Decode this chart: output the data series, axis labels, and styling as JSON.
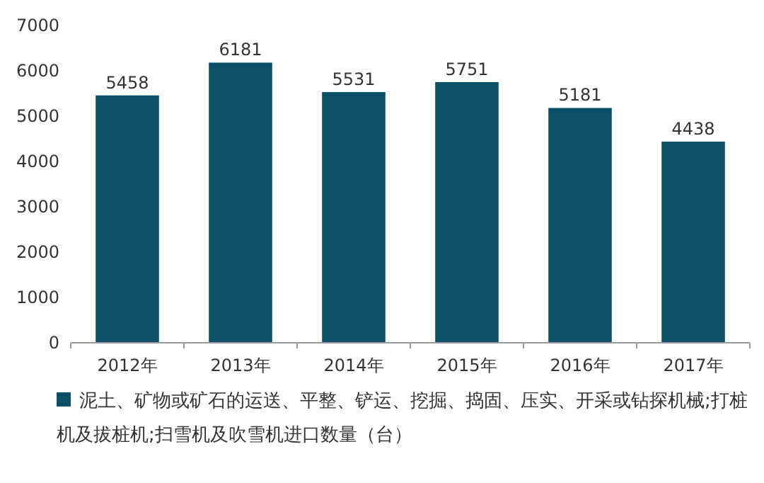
{
  "chart_data": {
    "type": "bar",
    "categories": [
      "2012年",
      "2013年",
      "2014年",
      "2015年",
      "2016年",
      "2017年"
    ],
    "series": [
      {
        "name": "泥土、矿物或矿石的运送、平整、铲运、挖掘、捣固、压实、开采或钻探机械;打桩机及拔桩机;扫雪机及吹雪机进口数量（台）",
        "color": "#0e5068",
        "values": [
          5458,
          6181,
          5531,
          5751,
          5181,
          4438
        ]
      }
    ],
    "ylim": [
      0,
      7000
    ],
    "yticks": [
      0,
      1000,
      2000,
      3000,
      4000,
      5000,
      6000,
      7000
    ],
    "grid": false,
    "legend": "bottom",
    "data_labels": true
  }
}
